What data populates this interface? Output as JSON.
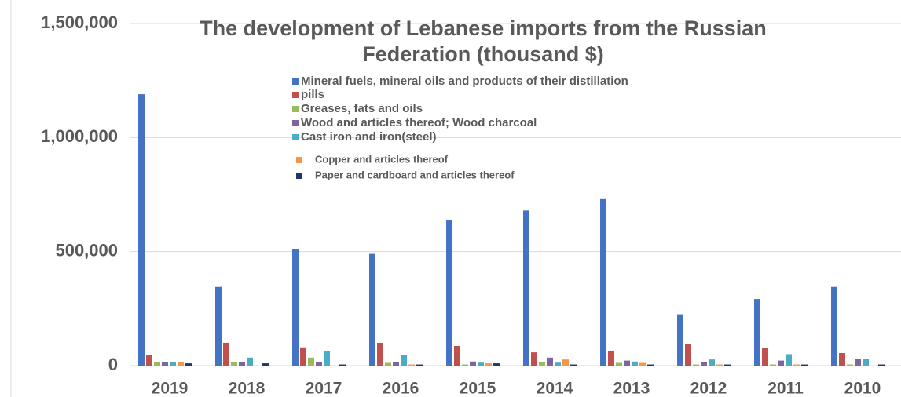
{
  "chart_data": {
    "type": "bar",
    "title": "The development of Lebanese imports from the Russian Federation (thousand $)",
    "categories": [
      "2019",
      "2018",
      "2017",
      "2016",
      "2015",
      "2014",
      "2013",
      "2012",
      "2011",
      "2010"
    ],
    "series": [
      {
        "name": "Mineral fuels, mineral oils and products of their distillation",
        "color": "#4472c4",
        "values": [
          1190000,
          345000,
          510000,
          490000,
          640000,
          680000,
          730000,
          225000,
          292000,
          345000
        ]
      },
      {
        "name": "pills",
        "color": "#c0504d",
        "values": [
          45000,
          100000,
          80000,
          100000,
          86000,
          58000,
          62000,
          93000,
          76000,
          55000
        ]
      },
      {
        "name": "Greases, fats and oils",
        "color": "#9bbb59",
        "values": [
          17000,
          17000,
          35000,
          12000,
          5000,
          14000,
          12000,
          5000,
          5000,
          5000
        ]
      },
      {
        "name": "Wood and articles thereof; Wood charcoal",
        "color": "#8064a2",
        "values": [
          14000,
          17000,
          14000,
          14000,
          18000,
          35000,
          22000,
          17000,
          22000,
          28000
        ]
      },
      {
        "name": "Cast iron  and iron(steel)",
        "color": "#4bacc6",
        "values": [
          14000,
          35000,
          62000,
          48000,
          13000,
          13000,
          18000,
          27000,
          50000,
          28000
        ]
      },
      {
        "name": "Copper and articles thereof",
        "color": "#f79646",
        "values": [
          14000,
          0,
          0,
          5000,
          10000,
          27000,
          12000,
          5000,
          5000,
          0
        ]
      },
      {
        "name": "Paper and cardboard and articles thereof",
        "color": "#1f3864",
        "values": [
          10000,
          10000,
          5000,
          5000,
          10000,
          5000,
          5000,
          5000,
          5000,
          5000
        ]
      }
    ],
    "ylim": [
      0,
      1500000
    ],
    "yticks": [
      0,
      {
        "value": 500000,
        "label": "500,000"
      },
      {
        "value": 1000000,
        "label": "1,000,000"
      },
      {
        "value": 1500000,
        "label": "1,500,000"
      }
    ],
    "grid": true
  }
}
